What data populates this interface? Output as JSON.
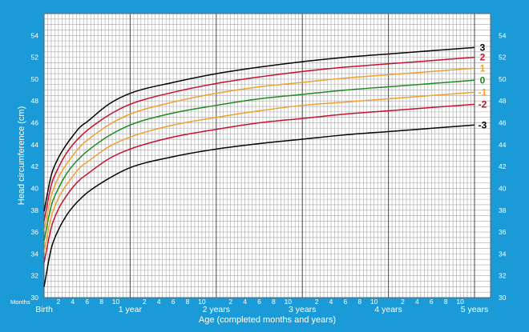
{
  "chart_data": {
    "type": "line",
    "ylabel": "Head circumference (cm)",
    "xlabel": "Age (completed months and years)",
    "xlim": [
      0,
      60
    ],
    "ylim": [
      30,
      56
    ],
    "y_ticks": [
      30,
      32,
      34,
      36,
      38,
      40,
      42,
      44,
      46,
      48,
      50,
      52,
      54
    ],
    "grid": true,
    "months_label": "Months",
    "x_major_ticks": [
      {
        "month": 0,
        "label": "Birth"
      },
      {
        "month": 12,
        "label": "1 year"
      },
      {
        "month": 24,
        "label": "2 years"
      },
      {
        "month": 36,
        "label": "3 years"
      },
      {
        "month": 48,
        "label": "4 years"
      },
      {
        "month": 60,
        "label": "5 years"
      }
    ],
    "x_minor_ticks": [
      {
        "month": 2,
        "label": "2"
      },
      {
        "month": 4,
        "label": "4"
      },
      {
        "month": 6,
        "label": "6"
      },
      {
        "month": 8,
        "label": "8"
      },
      {
        "month": 10,
        "label": "10"
      },
      {
        "month": 14,
        "label": "2"
      },
      {
        "month": 16,
        "label": "4"
      },
      {
        "month": 18,
        "label": "6"
      },
      {
        "month": 20,
        "label": "8"
      },
      {
        "month": 22,
        "label": "10"
      },
      {
        "month": 26,
        "label": "2"
      },
      {
        "month": 28,
        "label": "4"
      },
      {
        "month": 30,
        "label": "6"
      },
      {
        "month": 32,
        "label": "8"
      },
      {
        "month": 34,
        "label": "10"
      },
      {
        "month": 38,
        "label": "2"
      },
      {
        "month": 40,
        "label": "4"
      },
      {
        "month": 42,
        "label": "6"
      },
      {
        "month": 44,
        "label": "8"
      },
      {
        "month": 46,
        "label": "10"
      },
      {
        "month": 50,
        "label": "2"
      },
      {
        "month": 52,
        "label": "4"
      },
      {
        "month": 54,
        "label": "6"
      },
      {
        "month": 56,
        "label": "8"
      },
      {
        "month": 58,
        "label": "10"
      }
    ],
    "x": [
      0,
      1,
      2,
      3,
      4,
      5,
      6,
      9,
      12,
      18,
      24,
      30,
      36,
      42,
      48,
      54,
      60
    ],
    "series": [
      {
        "name": "3",
        "color": "#000000",
        "values": [
          37.9,
          41.2,
          42.8,
          43.9,
          44.8,
          45.6,
          46.1,
          47.7,
          48.7,
          49.7,
          50.5,
          51.1,
          51.6,
          52.0,
          52.3,
          52.6,
          52.9
        ]
      },
      {
        "name": "2",
        "color": "#c4122f",
        "values": [
          37.0,
          40.3,
          41.9,
          43.1,
          44.0,
          44.7,
          45.3,
          46.7,
          47.7,
          48.8,
          49.6,
          50.2,
          50.7,
          51.1,
          51.4,
          51.7,
          52.0
        ]
      },
      {
        "name": "1",
        "color": "#f0a030",
        "values": [
          36.1,
          39.3,
          41.0,
          42.1,
          43.0,
          43.8,
          44.4,
          45.8,
          46.8,
          47.9,
          48.7,
          49.3,
          49.7,
          50.1,
          50.4,
          50.7,
          51.0
        ]
      },
      {
        "name": "0",
        "color": "#1e8c1e",
        "values": [
          35.2,
          38.4,
          40.0,
          41.2,
          42.1,
          42.8,
          43.4,
          44.8,
          45.8,
          46.9,
          47.6,
          48.2,
          48.6,
          49.0,
          49.3,
          49.6,
          49.9
        ]
      },
      {
        "name": "-1",
        "color": "#f0a030",
        "values": [
          34.2,
          37.4,
          39.1,
          40.2,
          41.1,
          41.9,
          42.4,
          43.8,
          44.7,
          45.8,
          46.5,
          47.1,
          47.6,
          47.9,
          48.2,
          48.5,
          48.8
        ]
      },
      {
        "name": "-2",
        "color": "#c4122f",
        "values": [
          33.2,
          36.4,
          38.1,
          39.2,
          40.1,
          40.8,
          41.3,
          42.7,
          43.6,
          44.7,
          45.4,
          46.0,
          46.4,
          46.8,
          47.1,
          47.4,
          47.7
        ]
      },
      {
        "name": "-3",
        "color": "#000000",
        "values": [
          31.0,
          34.5,
          36.2,
          37.4,
          38.3,
          39.0,
          39.6,
          40.9,
          41.9,
          42.9,
          43.6,
          44.1,
          44.5,
          44.9,
          45.2,
          45.5,
          45.8
        ]
      }
    ]
  },
  "colors": {
    "background": "#1a9bd7",
    "plot_bg": "#ffffff",
    "grid": "#a8a8a8",
    "grid_major": "#555555"
  }
}
